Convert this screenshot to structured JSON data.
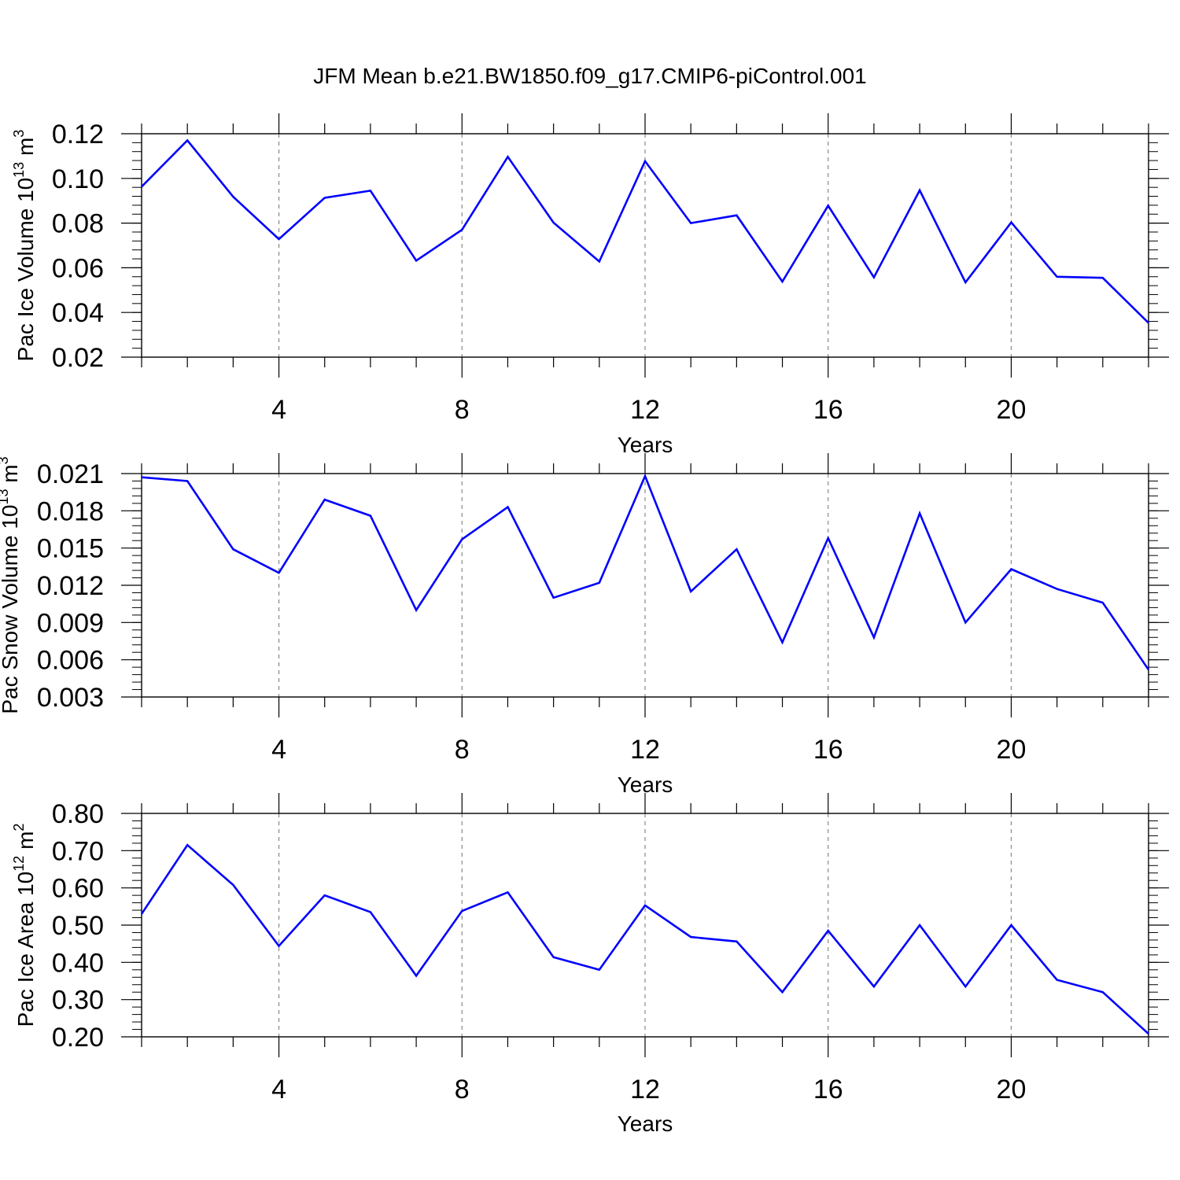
{
  "figure_title": "JFM Mean b.e21.BW1850.f09_g17.CMIP6-piControl.001",
  "line_color": "#0000ff",
  "grid_color": "#888888",
  "chart_data": [
    {
      "type": "line",
      "title": "",
      "ylabel": {
        "text": "Pac Ice Volume 10",
        "sup": "13",
        "unit": " m",
        "unit_sup": "3"
      },
      "xlabel": "Years",
      "xlim": [
        1,
        23
      ],
      "ylim": [
        0.02,
        0.12
      ],
      "xticks": [
        4,
        8,
        12,
        16,
        20
      ],
      "xtick_labels": [
        "4",
        "8",
        "12",
        "16",
        "20"
      ],
      "yticks": [
        0.02,
        0.04,
        0.06,
        0.08,
        0.1,
        0.12
      ],
      "ytick_labels": [
        "0.02",
        "0.04",
        "0.06",
        "0.08",
        "0.10",
        "0.12"
      ],
      "y_minor_step": 0.004,
      "grid": "x-dashed",
      "series": [
        {
          "x": [
            1,
            2,
            3,
            4,
            5,
            6,
            7,
            8,
            9,
            10,
            11,
            12,
            13,
            14,
            15,
            16,
            17,
            18,
            19,
            20,
            21,
            22,
            23
          ],
          "values": [
            0.0963,
            0.117,
            0.0918,
            0.0728,
            0.0913,
            0.0945,
            0.0632,
            0.077,
            0.1097,
            0.0802,
            0.0628,
            0.1077,
            0.08,
            0.0835,
            0.0538,
            0.0878,
            0.0557,
            0.0947,
            0.0535,
            0.0803,
            0.056,
            0.0555,
            0.0353
          ]
        }
      ]
    },
    {
      "type": "line",
      "title": "",
      "ylabel": {
        "text": "Pac Snow Volume 10",
        "sup": "13",
        "unit": " m",
        "unit_sup": "3"
      },
      "xlabel": "Years",
      "xlim": [
        1,
        23
      ],
      "ylim": [
        0.003,
        0.021
      ],
      "xticks": [
        4,
        8,
        12,
        16,
        20
      ],
      "xtick_labels": [
        "4",
        "8",
        "12",
        "16",
        "20"
      ],
      "yticks": [
        0.003,
        0.006,
        0.009,
        0.012,
        0.015,
        0.018,
        0.021
      ],
      "ytick_labels": [
        "0.003",
        "0.006",
        "0.009",
        "0.012",
        "0.015",
        "0.018",
        "0.021"
      ],
      "y_minor_step": 0.0006,
      "grid": "x-dashed",
      "series": [
        {
          "x": [
            1,
            2,
            3,
            4,
            5,
            6,
            7,
            8,
            9,
            10,
            11,
            12,
            13,
            14,
            15,
            16,
            17,
            18,
            19,
            20,
            21,
            22,
            23
          ],
          "values": [
            0.0207,
            0.0204,
            0.0149,
            0.013,
            0.0189,
            0.0176,
            0.01,
            0.0157,
            0.0183,
            0.011,
            0.0122,
            0.0208,
            0.0115,
            0.0149,
            0.0074,
            0.0158,
            0.0078,
            0.0178,
            0.009,
            0.0133,
            0.0117,
            0.0106,
            0.0052
          ]
        }
      ]
    },
    {
      "type": "line",
      "title": "",
      "ylabel": {
        "text": "Pac Ice Area 10",
        "sup": "12",
        "unit": " m",
        "unit_sup": "2"
      },
      "xlabel": "Years",
      "xlim": [
        1,
        23
      ],
      "ylim": [
        0.2,
        0.8
      ],
      "xticks": [
        4,
        8,
        12,
        16,
        20
      ],
      "xtick_labels": [
        "4",
        "8",
        "12",
        "16",
        "20"
      ],
      "yticks": [
        0.2,
        0.3,
        0.4,
        0.5,
        0.6,
        0.7,
        0.8
      ],
      "ytick_labels": [
        "0.20",
        "0.30",
        "0.40",
        "0.50",
        "0.60",
        "0.70",
        "0.80"
      ],
      "y_minor_step": 0.02,
      "grid": "x-dashed",
      "series": [
        {
          "x": [
            1,
            2,
            3,
            4,
            5,
            6,
            7,
            8,
            9,
            10,
            11,
            12,
            13,
            14,
            15,
            16,
            17,
            18,
            19,
            20,
            21,
            22,
            23
          ],
          "values": [
            0.53,
            0.715,
            0.608,
            0.444,
            0.58,
            0.535,
            0.364,
            0.538,
            0.588,
            0.414,
            0.38,
            0.553,
            0.468,
            0.456,
            0.32,
            0.485,
            0.335,
            0.5,
            0.335,
            0.5,
            0.353,
            0.32,
            0.208
          ]
        }
      ]
    }
  ]
}
